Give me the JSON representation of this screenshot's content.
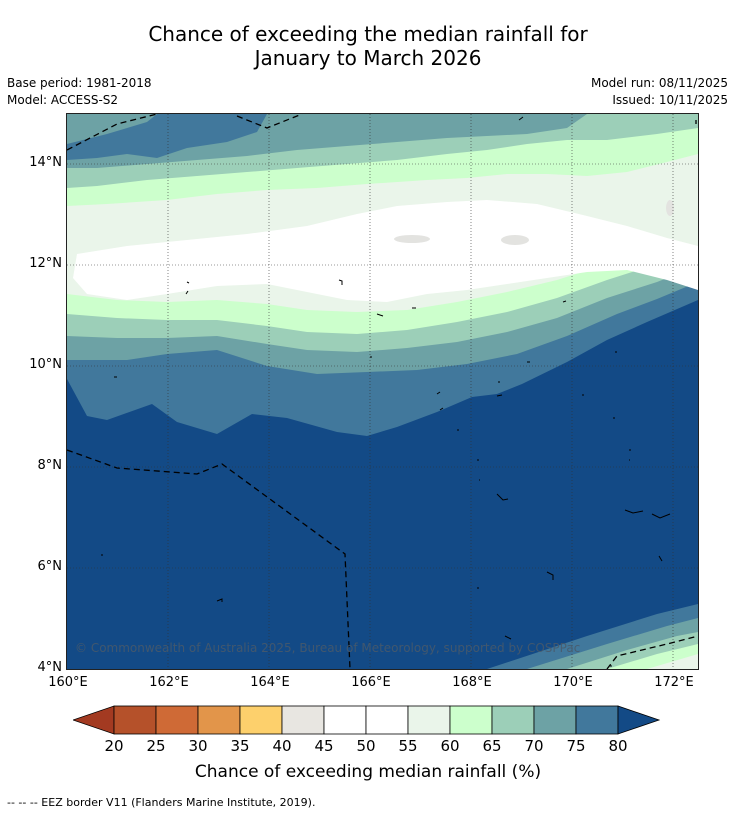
{
  "title": {
    "line1": "Chance of exceeding the median rainfall for",
    "line2": "January to March 2026"
  },
  "meta": {
    "base_period": "Base period: 1981-2018",
    "model": "Model: ACCESS-S2",
    "model_run": "Model run: 08/11/2025",
    "issued": "Issued: 10/11/2025"
  },
  "map": {
    "copyright": "© Commonwealth of Australia 2025, Bureau of Meteorology, supported by COSPPac",
    "lat_labels": [
      "14°N",
      "12°N",
      "10°N",
      "8°N",
      "6°N",
      "4°N"
    ],
    "lon_labels": [
      "160°E",
      "162°E",
      "164°E",
      "166°E",
      "168°E",
      "170°E",
      "172°E"
    ]
  },
  "colorbar": {
    "ticks": [
      "20",
      "25",
      "30",
      "35",
      "40",
      "45",
      "50",
      "55",
      "60",
      "65",
      "70",
      "75",
      "80"
    ],
    "colors": [
      "#a33a21",
      "#b5512a",
      "#cf6a36",
      "#e2954a",
      "#fdd06c",
      "#e8e6e1",
      "#ffffff",
      "#ffffff",
      "#eaf5ea",
      "#ccffcc",
      "#9ccfb8",
      "#6da2a5",
      "#41789c",
      "#134a86"
    ],
    "label": "Chance of exceeding median rainfall (%)"
  },
  "footer": "--  --  -- EEZ border V11 (Flanders Marine Institute, 2019)."
}
